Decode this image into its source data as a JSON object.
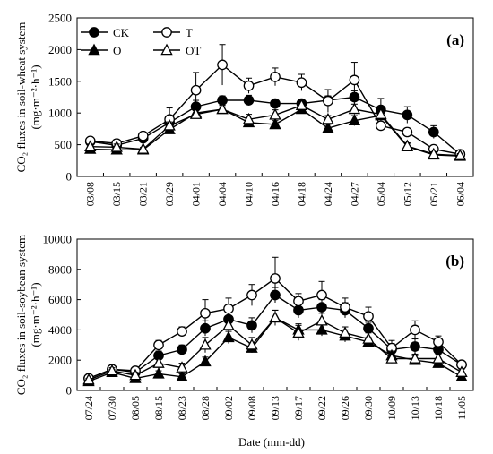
{
  "figure": {
    "xlabel": "Date (mm-dd)"
  },
  "chart_data": [
    {
      "type": "line",
      "panel_label": "(a)",
      "ylabel_line1": "CO₂ fluxes in soil-wheat system",
      "ylabel_line2": "(mg·m⁻²·h⁻¹)",
      "ylim": [
        0,
        2500
      ],
      "yticks": [
        0,
        500,
        1000,
        1500,
        2000,
        2500
      ],
      "grid": false,
      "legend_position": "top-left",
      "categories": [
        "03/08",
        "03/15",
        "03/21",
        "03/29",
        "04/01",
        "04/04",
        "04/10",
        "04/16",
        "04/18",
        "04/24",
        "04/27",
        "05/04",
        "05/12",
        "05/21",
        "06/04"
      ],
      "series": [
        {
          "name": "CK",
          "marker": "circle-filled",
          "values": [
            550,
            490,
            600,
            850,
            1100,
            1200,
            1200,
            1150,
            1150,
            1200,
            1250,
            1050,
            970,
            700,
            350
          ],
          "errors": [
            40,
            60,
            40,
            80,
            100,
            70,
            80,
            60,
            60,
            70,
            100,
            180,
            130,
            100,
            30
          ]
        },
        {
          "name": "T",
          "marker": "circle-open",
          "values": [
            560,
            520,
            640,
            900,
            1360,
            1760,
            1430,
            1570,
            1480,
            1190,
            1520,
            800,
            700,
            430,
            350
          ],
          "errors": [
            50,
            60,
            60,
            180,
            280,
            320,
            120,
            140,
            130,
            180,
            280,
            60,
            60,
            60,
            30
          ]
        },
        {
          "name": "O",
          "marker": "triangle-filled",
          "values": [
            430,
            420,
            420,
            740,
            1000,
            1060,
            850,
            820,
            1060,
            760,
            880,
            960,
            470,
            340,
            320
          ],
          "errors": [
            40,
            50,
            30,
            60,
            50,
            60,
            60,
            60,
            60,
            60,
            80,
            60,
            50,
            40,
            30
          ]
        },
        {
          "name": "OT",
          "marker": "triangle-open",
          "values": [
            470,
            460,
            430,
            800,
            980,
            1060,
            900,
            970,
            1120,
            900,
            1060,
            980,
            480,
            350,
            330
          ],
          "errors": [
            40,
            50,
            30,
            60,
            60,
            60,
            80,
            80,
            60,
            60,
            80,
            70,
            50,
            40,
            30
          ]
        }
      ]
    },
    {
      "type": "line",
      "panel_label": "(b)",
      "ylabel_line1": "CO₂ fluxes in soil-soybean system",
      "ylabel_line2": "(mg·m⁻²·h⁻¹)",
      "ylim": [
        0,
        10000
      ],
      "yticks": [
        0,
        2000,
        4000,
        6000,
        8000,
        10000
      ],
      "grid": false,
      "categories": [
        "07/24",
        "07/30",
        "08/05",
        "08/15",
        "08/23",
        "08/28",
        "09/02",
        "09/08",
        "09/13",
        "09/17",
        "09/22",
        "09/26",
        "09/30",
        "10/09",
        "10/13",
        "10/18",
        "11/05"
      ],
      "series": [
        {
          "name": "CK",
          "marker": "circle-filled",
          "values": [
            800,
            1400,
            1200,
            2300,
            2700,
            4100,
            4700,
            4300,
            6300,
            5300,
            5500,
            5300,
            4100,
            2700,
            2900,
            2700,
            1700
          ],
          "errors": [
            100,
            200,
            200,
            300,
            300,
            500,
            500,
            500,
            500,
            500,
            500,
            500,
            400,
            400,
            500,
            400,
            200
          ]
        },
        {
          "name": "T",
          "marker": "circle-open",
          "values": [
            800,
            1400,
            1300,
            3000,
            3900,
            5100,
            5400,
            6300,
            7400,
            5900,
            6300,
            5500,
            4900,
            2800,
            4000,
            3200,
            1700
          ],
          "errors": [
            100,
            200,
            200,
            300,
            300,
            900,
            700,
            700,
            1400,
            500,
            900,
            600,
            600,
            500,
            600,
            400,
            200
          ]
        },
        {
          "name": "O",
          "marker": "triangle-filled",
          "values": [
            600,
            1200,
            800,
            1100,
            900,
            1900,
            3500,
            2800,
            4800,
            4000,
            4000,
            3600,
            3200,
            2300,
            2000,
            1800,
            900
          ],
          "errors": [
            100,
            200,
            200,
            200,
            200,
            300,
            400,
            300,
            500,
            400,
            400,
            400,
            300,
            300,
            300,
            300,
            200
          ]
        },
        {
          "name": "OT",
          "marker": "triangle-open",
          "values": [
            700,
            1300,
            1000,
            1800,
            1500,
            3000,
            4300,
            3000,
            4800,
            3800,
            4600,
            3800,
            3400,
            2100,
            2100,
            2100,
            1200
          ],
          "errors": [
            100,
            200,
            200,
            300,
            300,
            500,
            500,
            500,
            500,
            500,
            500,
            400,
            400,
            300,
            300,
            300,
            200
          ]
        }
      ]
    }
  ]
}
